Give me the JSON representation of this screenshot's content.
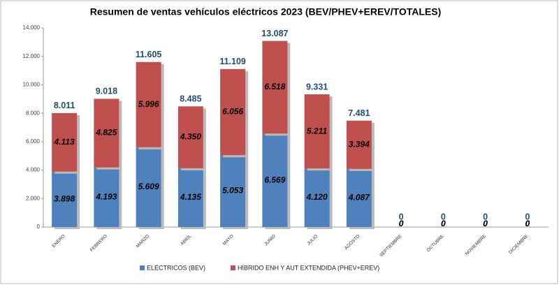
{
  "chart_data": {
    "type": "stacked_bar",
    "title": "Resumen de ventas vehículos eléctricos 2023 (BEV/PHEV+EREV/TOTALES)",
    "categories": [
      "ENERO",
      "FEBRERO",
      "MARZO",
      "ABRIL",
      "MAYO",
      "JUNIO",
      "JULIO",
      "AGOSTO",
      "SEPTIEMBRE",
      "OCTUBRE",
      "NOVIEMBRE",
      "DICIEMBRE"
    ],
    "series": [
      {
        "name": "ELÉCTRICOS (BEV)",
        "color": "#4f81bd",
        "values": [
          3898,
          4193,
          5609,
          4135,
          5053,
          6569,
          4120,
          4087,
          0,
          0,
          0,
          0
        ],
        "value_labels": [
          "3.898",
          "4.193",
          "5.609",
          "4.135",
          "5.053",
          "6.569",
          "4.120",
          "4.087",
          "0",
          "0",
          "0",
          "0"
        ]
      },
      {
        "name": "HÍBRIDO ENH Y AUT EXTENDIDA (PHEV+EREV)",
        "color": "#c0504d",
        "values": [
          4113,
          4825,
          5996,
          4350,
          6056,
          6518,
          5211,
          3394,
          0,
          0,
          0,
          0
        ],
        "value_labels": [
          "4.113",
          "4.825",
          "5.996",
          "4.350",
          "6.056",
          "6.518",
          "5.211",
          "3.394",
          "0",
          "0",
          "0",
          "0"
        ]
      }
    ],
    "totals": {
      "values": [
        8011,
        9018,
        11605,
        8485,
        11109,
        13087,
        9331,
        7481,
        0,
        0,
        0,
        0
      ],
      "value_labels": [
        "8.011",
        "9.018",
        "11.605",
        "8.485",
        "11.109",
        "13.087",
        "9.331",
        "7.481",
        "0",
        "0",
        "0",
        "0"
      ]
    },
    "ylim": [
      0,
      14000
    ],
    "yticks": [
      0,
      {
        "value": 2000,
        "label": "2.000"
      },
      {
        "value": 4000,
        "label": "4.000"
      },
      {
        "value": 6000,
        "label": "6.000"
      },
      {
        "value": 8000,
        "label": "8.000"
      },
      {
        "value": 10000,
        "label": "10.000"
      },
      {
        "value": 12000,
        "label": "12.000"
      },
      {
        "value": 14000,
        "label": "14.000"
      }
    ],
    "grid": false,
    "legend": "bottom"
  }
}
